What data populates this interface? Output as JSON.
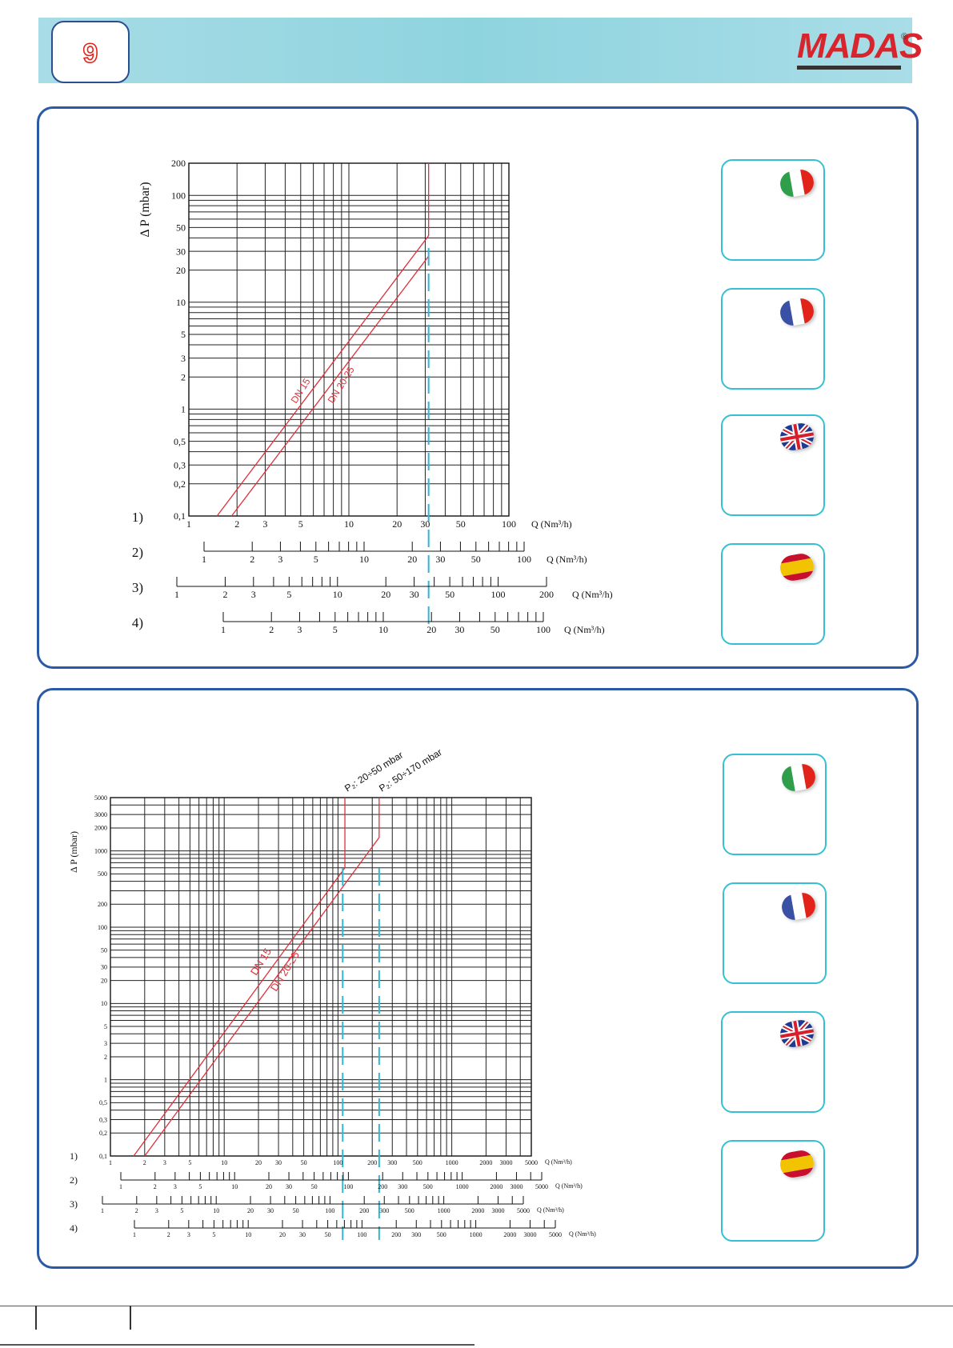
{
  "header": {
    "page_number": "9",
    "brand": "MADAS",
    "brand_reg": "®",
    "colors": {
      "band": "#8ed4df",
      "brand": "#d8242c",
      "panel_border": "#2b59a6",
      "curve": "#e0303a",
      "marker": "#2fb6d6"
    }
  },
  "language_boxes": [
    {
      "flag": "italy-flag-icon",
      "colors": [
        "#2e9e4a",
        "#ffffff",
        "#e2231a"
      ]
    },
    {
      "flag": "france-flag-icon",
      "colors": [
        "#3950a5",
        "#ffffff",
        "#e2231a"
      ]
    },
    {
      "flag": "uk-flag-icon",
      "colors": [
        "#1f3a93",
        "#ffffff",
        "#d81e2a"
      ]
    },
    {
      "flag": "spain-flag-icon",
      "colors": [
        "#c8102e",
        "#f2c300",
        "#c8102e"
      ]
    }
  ],
  "chart_data": [
    {
      "type": "line",
      "xscale": "log",
      "yscale": "log",
      "ylabel": "Δ P (mbar)",
      "xlabel": "Q (Nm³/h)",
      "xlim": [
        1,
        100
      ],
      "ylim": [
        0.1,
        200
      ],
      "grid": true,
      "y_ticks": [
        "200",
        "100",
        "50",
        "30",
        "20",
        "10",
        "5",
        "3",
        "2",
        "1",
        "0,5",
        "0,3",
        "0,2",
        "0,1"
      ],
      "series": [
        {
          "name": "DN 15",
          "x": [
            1.5,
            31.5,
            31.5
          ],
          "y": [
            0.1,
            42,
            200
          ]
        },
        {
          "name": "DN 20-25",
          "x": [
            1.85,
            31.5
          ],
          "y": [
            0.1,
            27
          ]
        }
      ],
      "marker_x": 31.5,
      "flow_scales": [
        {
          "label": "1)",
          "min": 1,
          "max": 100,
          "ticks": [
            "1",
            "2",
            "3",
            "5",
            "10",
            "20",
            "30",
            "50",
            "100"
          ],
          "unit": "Q (Nm³/h)"
        },
        {
          "label": "2)",
          "min": 1,
          "max": 100,
          "ticks": [
            "1",
            "2",
            "3",
            "5",
            "10",
            "20",
            "30",
            "50",
            "100"
          ],
          "unit": "Q (Nm³/h)"
        },
        {
          "label": "3)",
          "min": 1,
          "max": 200,
          "ticks": [
            "1",
            "2",
            "3",
            "5",
            "10",
            "20",
            "30",
            "50",
            "100",
            "200"
          ],
          "unit": "Q (Nm³/h)"
        },
        {
          "label": "4)",
          "min": 1,
          "max": 100,
          "ticks": [
            "1",
            "2",
            "3",
            "5",
            "10",
            "20",
            "30",
            "50",
            "100"
          ],
          "unit": "Q (Nm³/h)"
        }
      ]
    },
    {
      "type": "line",
      "xscale": "log",
      "yscale": "log",
      "ylabel": "Δ P (mbar)",
      "xlabel": "Q (Nm³/h)",
      "xlim": [
        1,
        5000
      ],
      "ylim": [
        0.1,
        5000
      ],
      "grid": true,
      "y_ticks": [
        "5000",
        "3000",
        "2000",
        "1000",
        "500",
        "200",
        "100",
        "50",
        "30",
        "20",
        "10",
        "5",
        "3",
        "2",
        "1",
        "0,5",
        "0,3",
        "0,2",
        "0,1"
      ],
      "annotations": [
        "P₂: 20÷50 mbar",
        "P₂: 50÷170 mbar"
      ],
      "series": [
        {
          "name": "DN 15",
          "x": [
            1.6,
            115,
            115
          ],
          "y": [
            0.1,
            600,
            5000
          ]
        },
        {
          "name": "DN 20-25",
          "x": [
            2.0,
            230,
            230
          ],
          "y": [
            0.1,
            1500,
            5000
          ]
        }
      ],
      "marker_x": [
        110,
        230
      ],
      "flow_scales": [
        {
          "label": "1)",
          "min": 1,
          "max": 5000,
          "ticks": [
            "1",
            "2",
            "3",
            "5",
            "10",
            "20",
            "30",
            "50",
            "100",
            "200",
            "300",
            "500",
            "1000",
            "2000",
            "3000",
            "5000"
          ],
          "unit": "Q (Nm³/h)"
        },
        {
          "label": "2)",
          "min": 1,
          "max": 5000,
          "ticks": [
            "1",
            "2",
            "3",
            "5",
            "10",
            "20",
            "30",
            "50",
            "100",
            "200",
            "300",
            "500",
            "1000",
            "2000",
            "3000",
            "5000"
          ],
          "unit": "Q (Nm³/h)"
        },
        {
          "label": "3)",
          "min": 1,
          "max": 5000,
          "ticks": [
            "1",
            "2",
            "3",
            "5",
            "10",
            "20",
            "30",
            "50",
            "100",
            "200",
            "300",
            "500",
            "1000",
            "2000",
            "3000",
            "5000"
          ],
          "unit": "Q (Nm³/h)"
        },
        {
          "label": "4)",
          "min": 1,
          "max": 5000,
          "ticks": [
            "1",
            "2",
            "3",
            "5",
            "10",
            "20",
            "30",
            "50",
            "100",
            "200",
            "300",
            "500",
            "1000",
            "2000",
            "3000",
            "5000"
          ],
          "unit": "Q (Nm³/h)"
        }
      ]
    }
  ]
}
